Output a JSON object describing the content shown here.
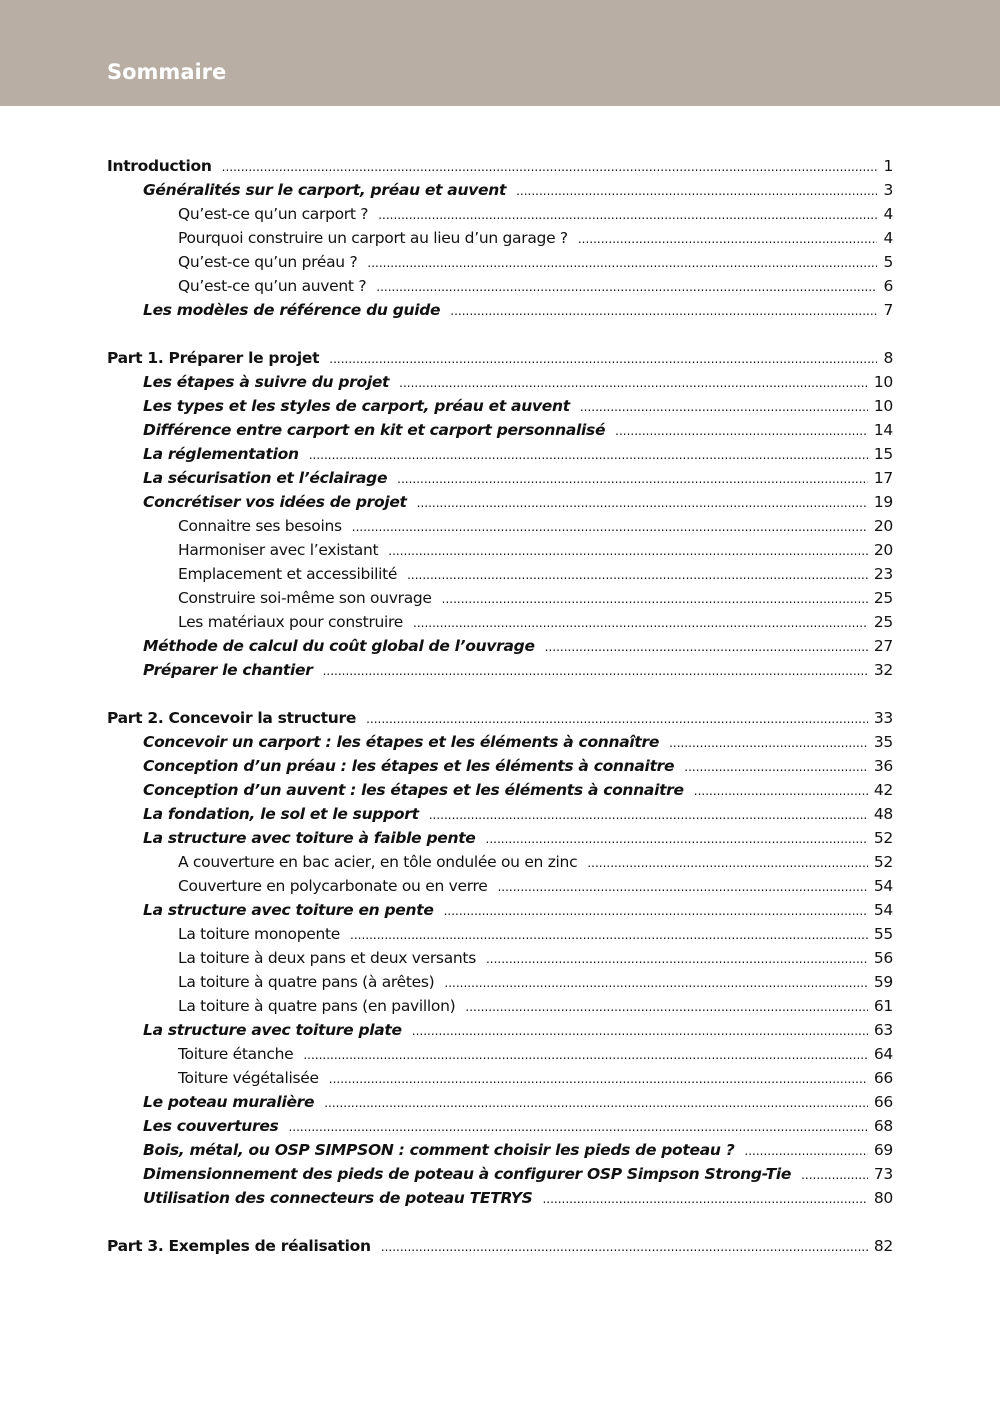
{
  "header": {
    "title": "Sommaire",
    "color": "#b8aea4"
  },
  "groups": [
    {
      "entries": [
        {
          "level": 1,
          "title": "Introduction",
          "page": "1"
        },
        {
          "level": 2,
          "title": "Généralités sur le carport, préau et auvent",
          "page": "3"
        },
        {
          "level": 3,
          "title": "Qu’est-ce qu’un carport ?",
          "page": "4"
        },
        {
          "level": 3,
          "title": "Pourquoi construire un carport au lieu d’un garage ?",
          "page": "4"
        },
        {
          "level": 3,
          "title": "Qu’est-ce qu’un préau ?",
          "page": "5"
        },
        {
          "level": 3,
          "title": "Qu’est-ce qu’un auvent ?",
          "page": "6"
        },
        {
          "level": 2,
          "title": "Les modèles de référence du guide",
          "page": "7"
        }
      ]
    },
    {
      "entries": [
        {
          "level": 1,
          "title": "Part 1. Préparer le projet",
          "page": "8"
        },
        {
          "level": 2,
          "title": "Les étapes à suivre du projet",
          "page": "10"
        },
        {
          "level": 2,
          "title": "Les types et les styles de carport, préau et auvent",
          "page": "10"
        },
        {
          "level": 2,
          "title": "Différence entre carport en kit et carport personnalisé",
          "page": "14"
        },
        {
          "level": 2,
          "title": "La réglementation",
          "page": "15"
        },
        {
          "level": 2,
          "title": "La sécurisation et l’éclairage",
          "page": "17"
        },
        {
          "level": 2,
          "title": "Concrétiser vos idées de projet",
          "page": "19"
        },
        {
          "level": 3,
          "title": "Connaitre ses besoins",
          "page": "20"
        },
        {
          "level": 3,
          "title": "Harmoniser avec l’existant",
          "page": "20"
        },
        {
          "level": 3,
          "title": "Emplacement et accessibilité",
          "page": "23"
        },
        {
          "level": 3,
          "title": "Construire soi-même son ouvrage",
          "page": "25"
        },
        {
          "level": 3,
          "title": "Les matériaux pour construire",
          "page": "25"
        },
        {
          "level": 2,
          "title": "Méthode de calcul du coût global de l’ouvrage",
          "page": "27"
        },
        {
          "level": 2,
          "title": "Préparer le chantier",
          "page": "32"
        }
      ]
    },
    {
      "entries": [
        {
          "level": 1,
          "title": "Part 2. Concevoir la structure",
          "page": "33"
        },
        {
          "level": 2,
          "title": "Concevoir un carport : les étapes et les éléments à connaître",
          "page": "35"
        },
        {
          "level": 2,
          "title": "Conception d’un préau : les étapes et les éléments à connaitre",
          "page": "36"
        },
        {
          "level": 2,
          "title": "Conception d’un auvent : les étapes et les éléments à connaitre",
          "page": "42"
        },
        {
          "level": 2,
          "title": "La fondation, le sol et le support",
          "page": "48"
        },
        {
          "level": 2,
          "title": "La structure avec toiture à faible pente",
          "page": "52"
        },
        {
          "level": 3,
          "title": "A couverture en bac acier, en tôle ondulée ou en zinc",
          "page": "52"
        },
        {
          "level": 3,
          "title": "Couverture en polycarbonate ou en verre",
          "page": "54"
        },
        {
          "level": 2,
          "title": "La structure avec toiture en pente",
          "page": "54"
        },
        {
          "level": 3,
          "title": "La toiture monopente",
          "page": "55"
        },
        {
          "level": 3,
          "title": "La toiture à deux pans et deux versants",
          "page": "56"
        },
        {
          "level": 3,
          "title": "La toiture à quatre pans (à arêtes)",
          "page": "59"
        },
        {
          "level": 3,
          "title": "La toiture à quatre pans (en pavillon)",
          "page": "61"
        },
        {
          "level": 2,
          "title": "La structure avec toiture plate",
          "page": "63"
        },
        {
          "level": 3,
          "title": "Toiture étanche",
          "page": "64"
        },
        {
          "level": 3,
          "title": "Toiture végétalisée",
          "page": "66"
        },
        {
          "level": 2,
          "title": "Le poteau muralière",
          "page": "66"
        },
        {
          "level": 2,
          "title": "Les couvertures",
          "page": "68"
        },
        {
          "level": 2,
          "title": "Bois, métal, ou OSP SIMPSON : comment choisir les pieds de poteau ?",
          "page": "69"
        },
        {
          "level": 2,
          "title": "Dimensionnement des pieds de poteau à configurer OSP Simpson Strong-Tie",
          "page": "73"
        },
        {
          "level": 2,
          "title": "Utilisation des connecteurs de poteau TETRYS",
          "page": "80"
        }
      ]
    },
    {
      "entries": [
        {
          "level": 1,
          "title": "Part 3. Exemples de réalisation",
          "page": "82"
        }
      ]
    }
  ]
}
